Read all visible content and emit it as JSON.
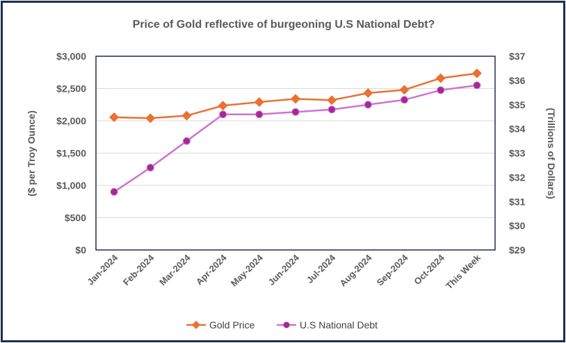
{
  "chart_data": {
    "type": "line",
    "title": "Price of Gold reflective of burgeoning U.S National Debt?",
    "categories": [
      "Jan-2024",
      "Feb-2024",
      "Mar-2024",
      "Apr-2024",
      "May-2024",
      "Jun-2024",
      "Jul-2024",
      "Aug-2024",
      "Sep-2024",
      "Oct-2024",
      "This Week"
    ],
    "ylabel": "($ per Troy Ounce)",
    "y2label": "(Trillions of Dollars)",
    "ylim": [
      0,
      3000
    ],
    "y2lim": [
      29,
      37
    ],
    "yticks": [
      "$0",
      "$500",
      "$1,000",
      "$1,500",
      "$2,000",
      "$2,500",
      "$3,000"
    ],
    "y2ticks": [
      "$29",
      "$30",
      "$31",
      "$32",
      "$33",
      "$34",
      "$35",
      "$36",
      "$37"
    ],
    "grid": true,
    "legend_position": "bottom",
    "series": [
      {
        "name": "Gold Price",
        "axis": "left",
        "color": "#e97132",
        "marker": "diamond",
        "values": [
          2055,
          2040,
          2080,
          2235,
          2290,
          2340,
          2320,
          2430,
          2480,
          2660,
          2735
        ]
      },
      {
        "name": "U.S National Debt",
        "axis": "right",
        "color": "#d072d0",
        "marker_color": "#a02b93",
        "marker": "circle",
        "values": [
          31.4,
          32.4,
          33.5,
          34.6,
          34.6,
          34.7,
          34.8,
          35.0,
          35.2,
          35.6,
          35.8
        ]
      }
    ]
  }
}
